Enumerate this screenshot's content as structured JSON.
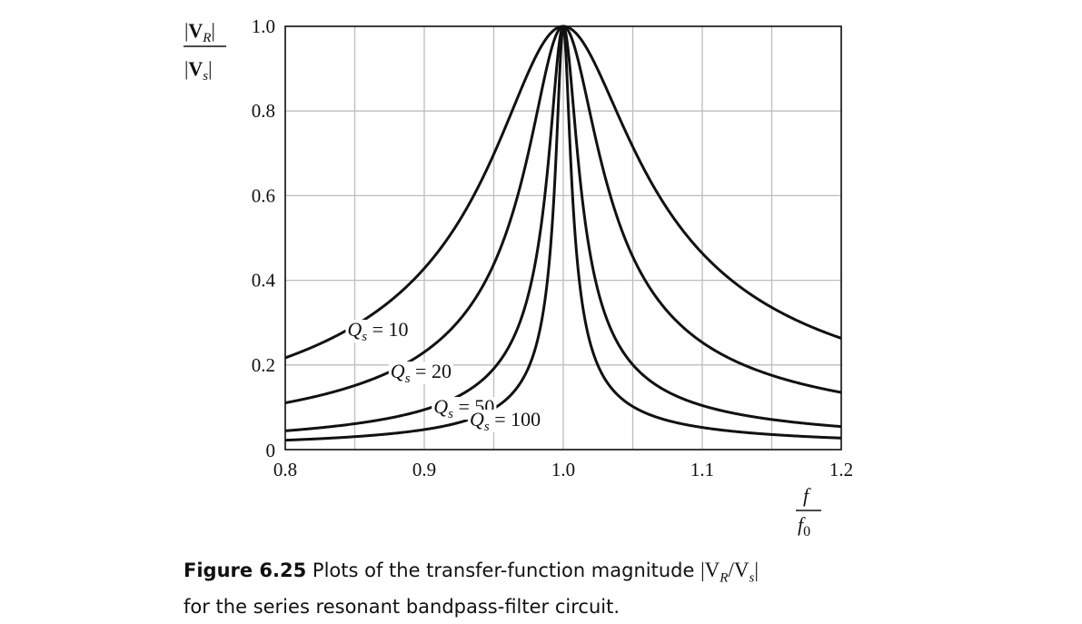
{
  "chart_data": {
    "type": "line",
    "x_ticks": [
      "0.8",
      "0.9",
      "1.0",
      "1.1",
      "1.2"
    ],
    "y_ticks": [
      "0",
      "0.2",
      "0.4",
      "0.6",
      "0.8",
      "1.0"
    ],
    "xlim": [
      0.8,
      1.2
    ],
    "ylim": [
      0,
      1.0
    ],
    "grid": true,
    "x_gridlines": [
      0.8,
      0.85,
      0.9,
      0.95,
      1.0,
      1.05,
      1.1,
      1.15,
      1.2
    ],
    "y_gridlines": [
      0,
      0.2,
      0.4,
      0.6,
      0.8,
      1.0
    ],
    "xlabel": {
      "numerator": "f",
      "denominator": "f",
      "denominator_sub": "0"
    },
    "ylabel": {
      "numerator": "V",
      "numerator_sub": "R",
      "denominator": "V",
      "denominator_sub": "s"
    },
    "series": [
      {
        "name": "Q_s = 10",
        "Q": 10,
        "x": [
          0.8,
          0.85,
          0.9,
          0.95,
          1.0,
          1.05,
          1.1,
          1.15,
          1.2
        ],
        "y": [
          0.221,
          0.288,
          0.426,
          0.702,
          1.0,
          0.735,
          0.461,
          0.317,
          0.234
        ]
      },
      {
        "name": "Q_s = 20",
        "Q": 20,
        "x": [
          0.8,
          0.85,
          0.9,
          0.95,
          1.0,
          1.05,
          1.1,
          1.15,
          1.2
        ],
        "y": [
          0.112,
          0.148,
          0.229,
          0.445,
          1.0,
          0.496,
          0.254,
          0.163,
          0.119
        ]
      },
      {
        "name": "Q_s = 50",
        "Q": 50,
        "x": [
          0.8,
          0.85,
          0.9,
          0.95,
          1.0,
          1.05,
          1.1,
          1.15,
          1.2
        ],
        "y": [
          0.045,
          0.06,
          0.094,
          0.188,
          1.0,
          0.21,
          0.105,
          0.066,
          0.048
        ]
      },
      {
        "name": "Q_s = 100",
        "Q": 100,
        "x": [
          0.8,
          0.85,
          0.9,
          0.95,
          1.0,
          1.05,
          1.1,
          1.15,
          1.2
        ],
        "y": [
          0.022,
          0.03,
          0.047,
          0.095,
          1.0,
          0.107,
          0.053,
          0.033,
          0.024
        ]
      }
    ],
    "annotations": [
      {
        "series": 0,
        "symbol": "Q",
        "sub": "s",
        "text": " = 10"
      },
      {
        "series": 1,
        "symbol": "Q",
        "sub": "s",
        "text": " = 20"
      },
      {
        "series": 2,
        "symbol": "Q",
        "sub": "s",
        "text": " = 50"
      },
      {
        "series": 3,
        "symbol": "Q",
        "sub": "s",
        "text": " = 100"
      }
    ]
  },
  "caption": {
    "label": "Figure 6.25",
    "text_before": " Plots of the transfer-function magnitude ",
    "math": "|V",
    "math_sub1": "R",
    "math_mid": "/V",
    "math_sub2": "s",
    "math_end": "|",
    "text_after": "for the series resonant bandpass-filter circuit."
  },
  "colors": {
    "curve": "#111111",
    "grid": "#bdbdbd",
    "axis": "#111111"
  }
}
